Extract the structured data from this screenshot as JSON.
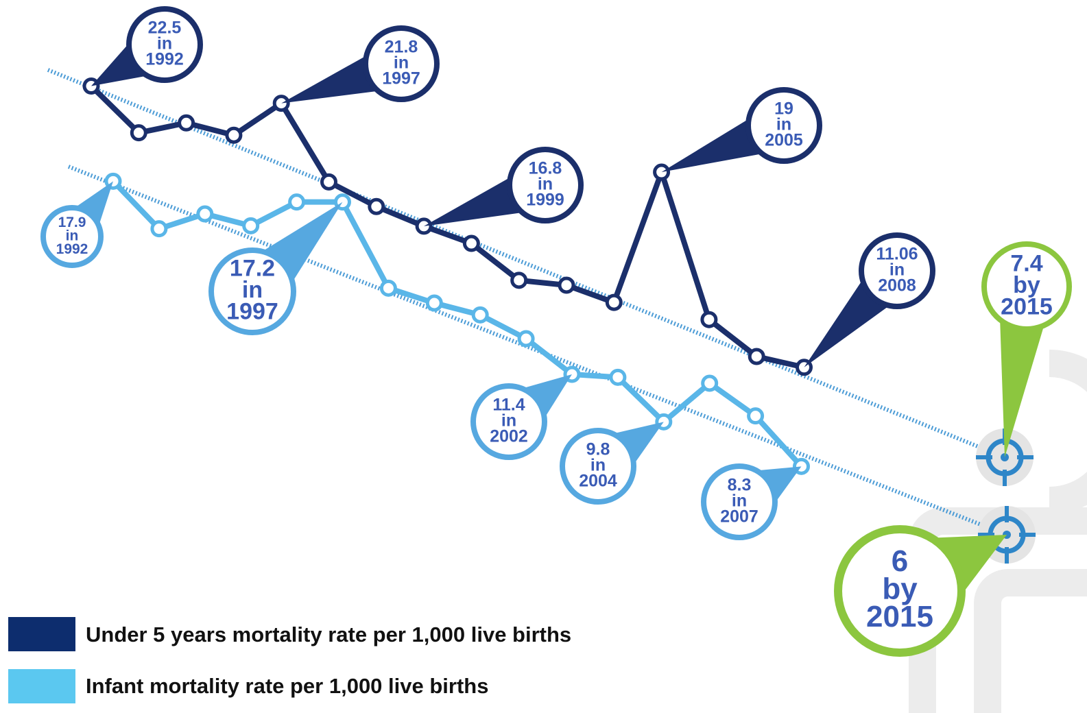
{
  "chart_data": {
    "type": "line",
    "ylim": [
      -3,
      26
    ],
    "y2lim": [
      0,
      24
    ],
    "series": [
      {
        "name": "Under 5 years mortality rate per 1,000 live births",
        "color": "#1b2f6b",
        "values": [
          22.5,
          20.6,
          21.0,
          20.5,
          21.8,
          18.6,
          17.6,
          16.8,
          16.1,
          14.6,
          14.4,
          13.7,
          19,
          13.0,
          11.5,
          11.06
        ],
        "notes": [
          [
            "in",
            "1992"
          ],
          null,
          null,
          null,
          [
            "in",
            "1997"
          ],
          null,
          null,
          [
            "in",
            "1999"
          ],
          null,
          null,
          null,
          null,
          [
            "in",
            "2005"
          ],
          null,
          null,
          [
            "in",
            "2008"
          ]
        ],
        "target": 7.4,
        "target_note": [
          "by",
          "2015"
        ]
      },
      {
        "name": "Infant mortality rate per 1,000 live births",
        "color": "#5ab6e8",
        "axis": "y2",
        "values": [
          17.9,
          16.3,
          16.8,
          16.4,
          17.2,
          17.2,
          14.3,
          13.8,
          13.4,
          12.6,
          11.4,
          11.3,
          9.8,
          11.1,
          10.0,
          8.3
        ],
        "notes": [
          [
            "in",
            "1992"
          ],
          null,
          null,
          null,
          null,
          [
            "in",
            "1997"
          ],
          null,
          null,
          null,
          null,
          [
            "in",
            "2002"
          ],
          null,
          [
            "in",
            "2004"
          ],
          null,
          null,
          [
            "in",
            "2007"
          ]
        ],
        "target": 6,
        "target_note": [
          "by",
          "2015"
        ]
      }
    ]
  }
}
